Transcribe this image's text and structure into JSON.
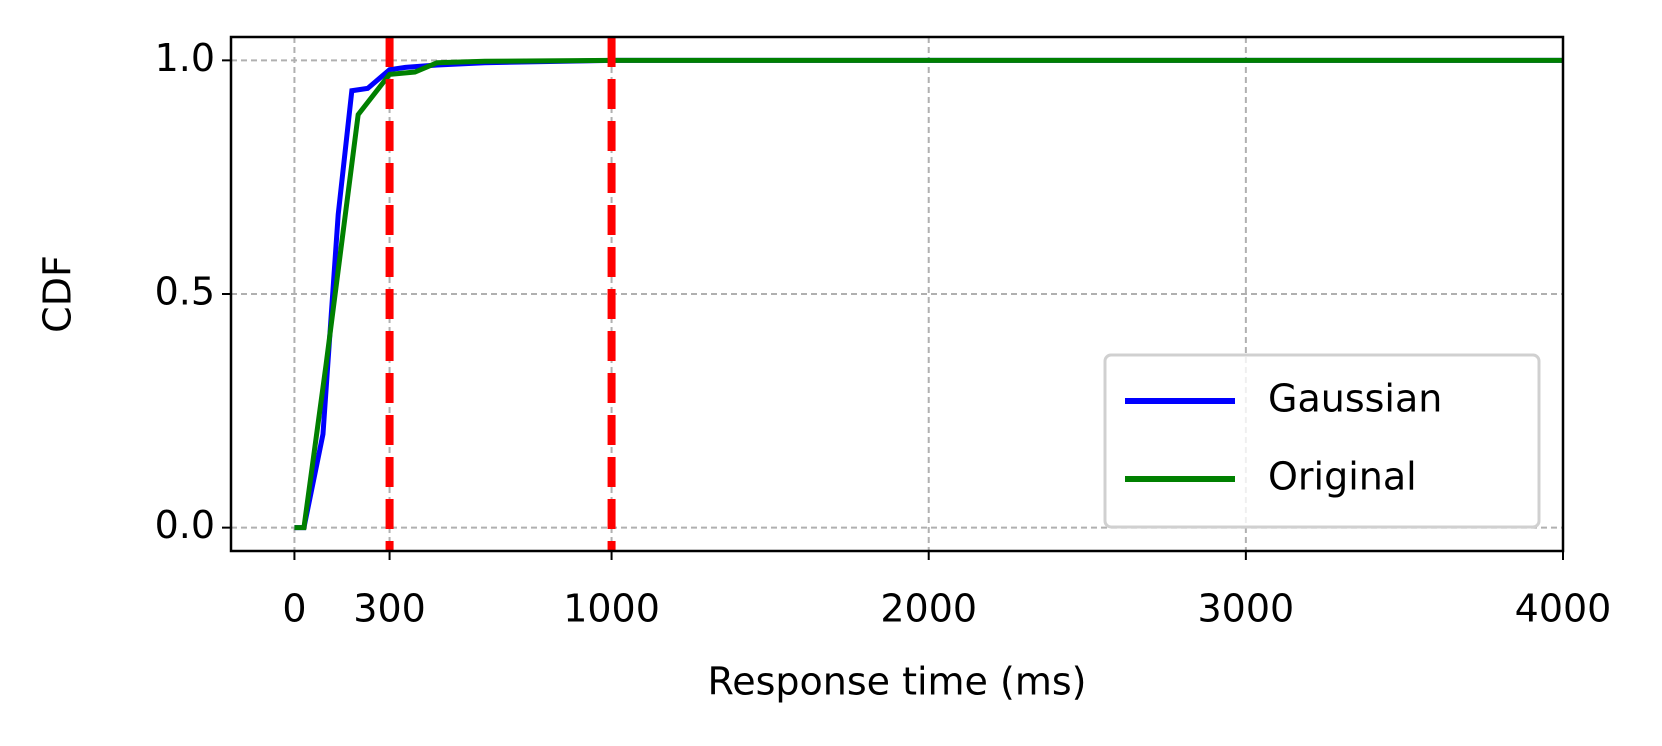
{
  "chart_data": {
    "type": "line",
    "xlabel": "Response time (ms)",
    "ylabel": "CDF",
    "xlim": [
      -200,
      4000
    ],
    "ylim": [
      -0.05,
      1.05
    ],
    "xticks": [
      0,
      300,
      1000,
      2000,
      3000,
      4000
    ],
    "yticks": [
      {
        "value": 0,
        "label": "0.0"
      },
      0.5,
      {
        "value": 1,
        "label": "1.0"
      }
    ],
    "grid": true,
    "legend": "lower right",
    "vlines": {
      "values": [
        300,
        1000
      ],
      "color": "#ff0000"
    },
    "series": [
      {
        "name": "Gaussian",
        "color": "#0000ff",
        "x": [
          0,
          30,
          90,
          138,
          181,
          231,
          300,
          350,
          450,
          600,
          1000,
          4000
        ],
        "values": [
          0,
          0,
          0.2,
          0.67,
          0.935,
          0.94,
          0.98,
          0.985,
          0.99,
          0.995,
          1.0,
          1.0
        ]
      },
      {
        "name": "Original",
        "color": "#008000",
        "x": [
          0,
          30,
          100,
          201,
          300,
          380,
          450,
          600,
          1000,
          4000
        ],
        "values": [
          0,
          0,
          0.35,
          0.884,
          0.97,
          0.975,
          0.995,
          0.998,
          1.0,
          1.0
        ]
      }
    ]
  }
}
